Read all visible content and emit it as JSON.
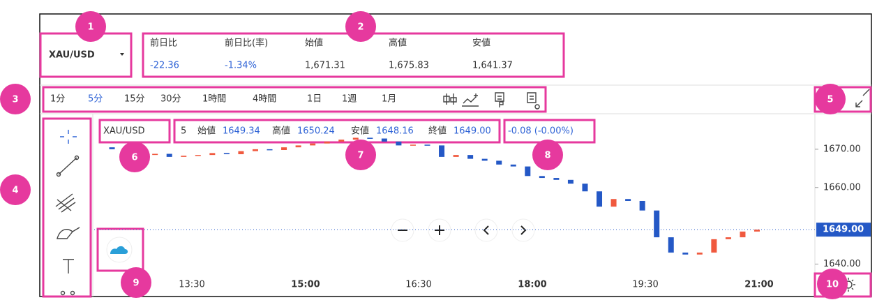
{
  "symbol": "XAU/USD",
  "quote": [
    {
      "label": "前日比",
      "value": "-22.36"
    },
    {
      "label": "前日比(率)",
      "value": "-1.34%"
    },
    {
      "label": "始値",
      "value": "1,671.31"
    },
    {
      "label": "高値",
      "value": "1,675.83"
    },
    {
      "label": "安値",
      "value": "1,641.37"
    }
  ],
  "quote_value_colors": [
    "#2f63d6",
    "#2f63d6",
    "#333333",
    "#333333",
    "#333333"
  ],
  "timeframes": [
    "1分",
    "5分",
    "15分",
    "30分",
    "1時間",
    "4時間",
    "1日",
    "1週",
    "1月"
  ],
  "active_timeframe": 1,
  "legend": {
    "symbol": "XAU/USD",
    "interval": "5",
    "items": [
      {
        "label": "始値",
        "value": "1649.34"
      },
      {
        "label": "高値",
        "value": "1650.24"
      },
      {
        "label": "安値",
        "value": "1648.16"
      },
      {
        "label": "終値",
        "value": "1649.00"
      }
    ],
    "change": "-0.08 (-0.00%)"
  },
  "price_axis": {
    "ylim": [
      1637,
      1678
    ],
    "ticks": [
      {
        "value": 1670,
        "label": "1670.00"
      },
      {
        "value": 1660,
        "label": "1660.00"
      },
      {
        "value": 1640,
        "label": "1640.00"
      }
    ],
    "last": {
      "value": 1649,
      "label": "1649.00"
    }
  },
  "time_axis": {
    "ticks": [
      {
        "label": "13:30",
        "bold": false
      },
      {
        "label": "15:00",
        "bold": true
      },
      {
        "label": "16:30",
        "bold": false
      },
      {
        "label": "18:00",
        "bold": true
      },
      {
        "label": "19:30",
        "bold": false
      },
      {
        "label": "21:00",
        "bold": true
      }
    ]
  },
  "candles": {
    "closes": [
      1670.5,
      1670,
      1669,
      1668.5,
      1668.8,
      1668,
      1668.3,
      1668.5,
      1669,
      1668.7,
      1669.5,
      1670,
      1669.8,
      1670.5,
      1671,
      1671.5,
      1672,
      1672.5,
      1673,
      1672.8,
      1672,
      1671,
      1671.2,
      1671,
      1668,
      1668.5,
      1667.5,
      1667,
      1666,
      1665.5,
      1663,
      1662.5,
      1662,
      1661,
      1659,
      1655,
      1657,
      1656.5,
      1654,
      1647,
      1643,
      1642.5,
      1643,
      1646.5,
      1647,
      1648.5,
      1649
    ],
    "up_color": "#f0593e",
    "down_color": "#2458c6"
  },
  "annotations": [
    "1",
    "2",
    "3",
    "4",
    "5",
    "6",
    "7",
    "8",
    "9",
    "10"
  ]
}
